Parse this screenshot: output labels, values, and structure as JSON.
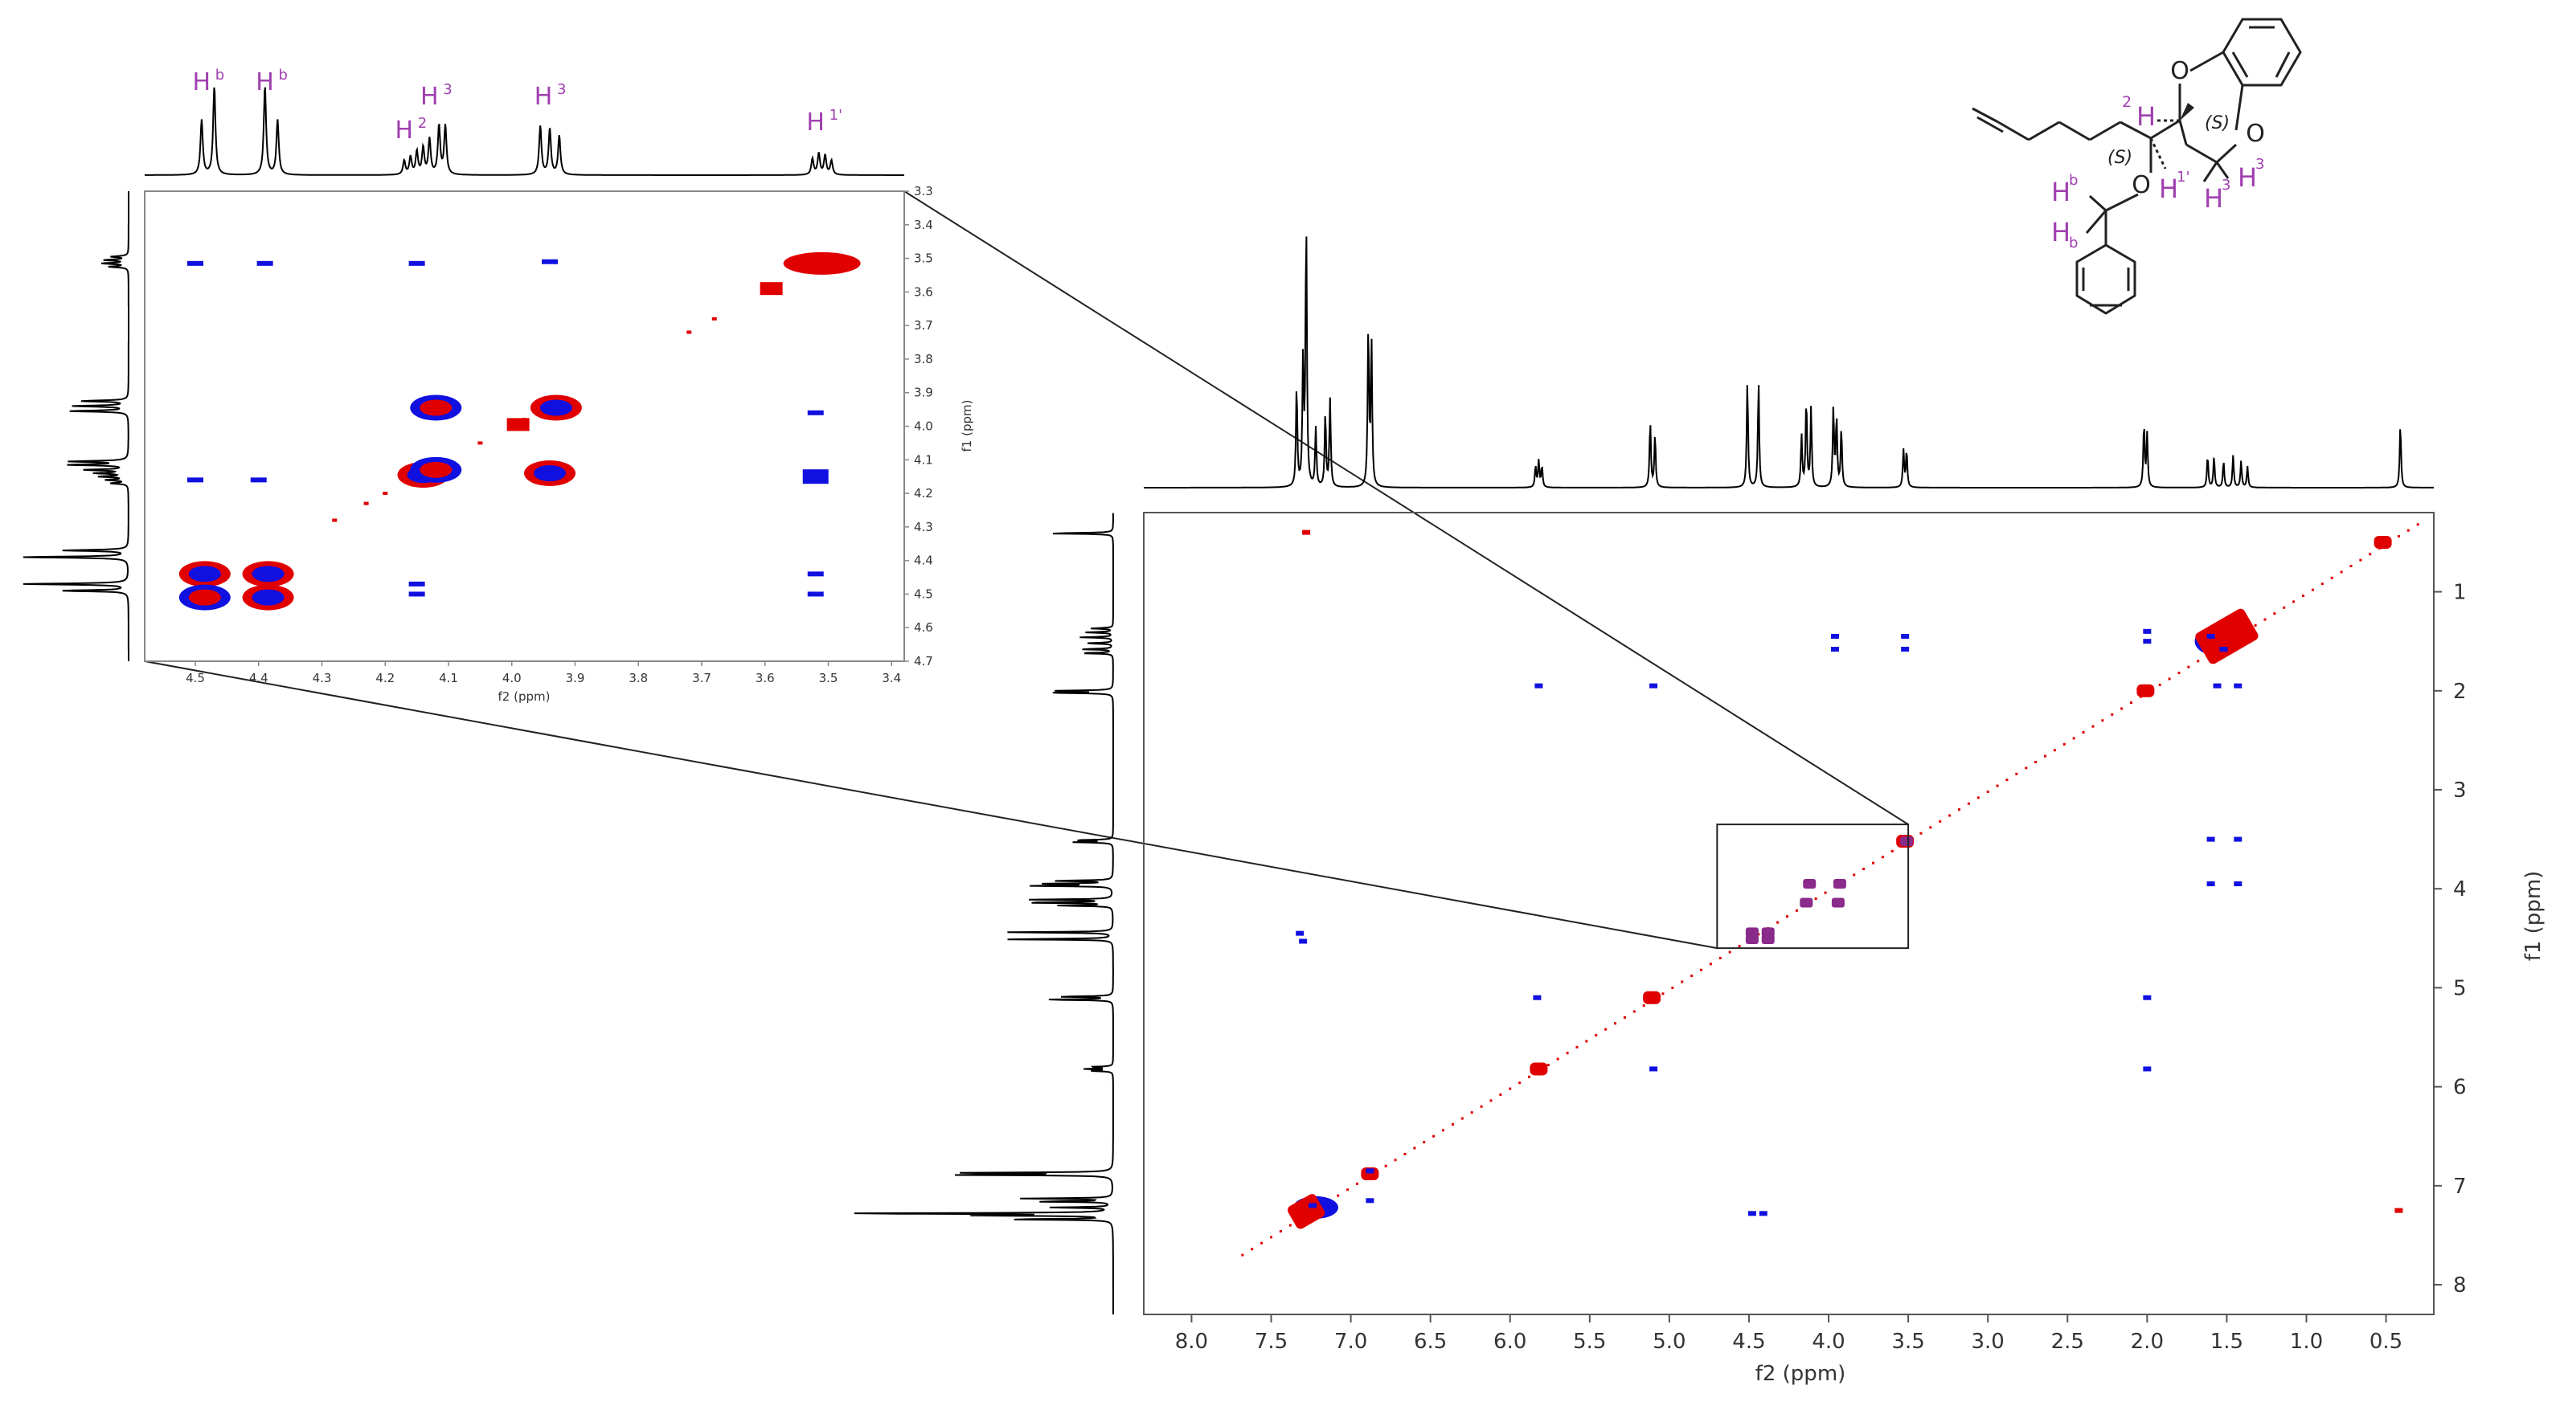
{
  "chart_data": [
    {
      "type": "heatmap",
      "name": "main-2d-spectrum",
      "xlabel": "f2 (ppm)",
      "ylabel": "f1 (ppm)",
      "xlim": [
        8.3,
        0.2
      ],
      "ylim": [
        0.2,
        8.3
      ],
      "x_ticks": [
        8.0,
        7.5,
        7.0,
        6.5,
        6.0,
        5.5,
        5.0,
        4.5,
        4.0,
        3.5,
        3.0,
        2.5,
        2.0,
        1.5,
        1.0,
        0.5
      ],
      "y_ticks": [
        1,
        2,
        3,
        4,
        5,
        6,
        7,
        8
      ],
      "colors": {
        "positive": "#e00000",
        "negative": "#1010e0",
        "frame": "#555555",
        "trace": "#000000",
        "zoom_box": "#222222"
      },
      "proton_peaks": [
        {
          "ppm": 7.34,
          "h": 0.38
        },
        {
          "ppm": 7.3,
          "h": 0.48
        },
        {
          "ppm": 7.28,
          "h": 1.0
        },
        {
          "ppm": 7.22,
          "h": 0.22
        },
        {
          "ppm": 7.16,
          "h": 0.28
        },
        {
          "ppm": 7.13,
          "h": 0.33
        },
        {
          "ppm": 6.89,
          "h": 0.6
        },
        {
          "ppm": 6.87,
          "h": 0.55
        },
        {
          "ppm": 5.84,
          "h": 0.08
        },
        {
          "ppm": 5.82,
          "h": 0.1
        },
        {
          "ppm": 5.8,
          "h": 0.08
        },
        {
          "ppm": 5.12,
          "h": 0.25
        },
        {
          "ppm": 5.09,
          "h": 0.2
        },
        {
          "ppm": 4.51,
          "h": 0.4
        },
        {
          "ppm": 4.44,
          "h": 0.4
        },
        {
          "ppm": 4.17,
          "h": 0.2
        },
        {
          "ppm": 4.14,
          "h": 0.33
        },
        {
          "ppm": 4.11,
          "h": 0.3
        },
        {
          "ppm": 3.97,
          "h": 0.3
        },
        {
          "ppm": 3.95,
          "h": 0.26
        },
        {
          "ppm": 3.92,
          "h": 0.22
        },
        {
          "ppm": 3.53,
          "h": 0.14
        },
        {
          "ppm": 3.51,
          "h": 0.14
        },
        {
          "ppm": 2.02,
          "h": 0.24
        },
        {
          "ppm": 2.0,
          "h": 0.2
        },
        {
          "ppm": 1.62,
          "h": 0.12
        },
        {
          "ppm": 1.58,
          "h": 0.12
        },
        {
          "ppm": 1.52,
          "h": 0.1
        },
        {
          "ppm": 1.46,
          "h": 0.12
        },
        {
          "ppm": 1.41,
          "h": 0.1
        },
        {
          "ppm": 1.37,
          "h": 0.08
        },
        {
          "ppm": 0.41,
          "h": 0.24
        }
      ],
      "diagonal_peaks": [
        {
          "x": 7.28,
          "y": 7.26
        },
        {
          "x": 6.88,
          "y": 6.88
        },
        {
          "x": 5.82,
          "y": 5.82
        },
        {
          "x": 5.11,
          "y": 5.1
        },
        {
          "x": 3.52,
          "y": 3.52
        },
        {
          "x": 2.01,
          "y": 2.0
        },
        {
          "x": 1.5,
          "y": 1.45
        },
        {
          "x": 0.52,
          "y": 0.5
        }
      ],
      "cross_peaks": [
        {
          "x": 7.28,
          "y": 0.4,
          "s": "pos"
        },
        {
          "x": 7.32,
          "y": 4.45,
          "s": "neg"
        },
        {
          "x": 7.3,
          "y": 4.53,
          "s": "neg"
        },
        {
          "x": 7.24,
          "y": 7.2,
          "s": "neg"
        },
        {
          "x": 6.88,
          "y": 7.15,
          "s": "neg"
        },
        {
          "x": 6.88,
          "y": 6.85,
          "s": "neg"
        },
        {
          "x": 5.82,
          "y": 1.95,
          "s": "neg"
        },
        {
          "x": 5.83,
          "y": 5.1,
          "s": "neg"
        },
        {
          "x": 5.1,
          "y": 5.82,
          "s": "neg"
        },
        {
          "x": 5.1,
          "y": 1.95,
          "s": "neg"
        },
        {
          "x": 4.48,
          "y": 7.28,
          "s": "neg"
        },
        {
          "x": 4.41,
          "y": 7.28,
          "s": "neg"
        },
        {
          "x": 3.96,
          "y": 1.45,
          "s": "neg"
        },
        {
          "x": 3.96,
          "y": 1.58,
          "s": "neg"
        },
        {
          "x": 3.52,
          "y": 1.45,
          "s": "neg"
        },
        {
          "x": 3.52,
          "y": 1.58,
          "s": "neg"
        },
        {
          "x": 2.0,
          "y": 1.4,
          "s": "neg"
        },
        {
          "x": 2.0,
          "y": 1.5,
          "s": "neg"
        },
        {
          "x": 2.0,
          "y": 5.1,
          "s": "neg"
        },
        {
          "x": 2.0,
          "y": 5.82,
          "s": "neg"
        },
        {
          "x": 1.6,
          "y": 1.45,
          "s": "neg"
        },
        {
          "x": 1.52,
          "y": 1.58,
          "s": "neg"
        },
        {
          "x": 1.56,
          "y": 1.95,
          "s": "neg"
        },
        {
          "x": 1.43,
          "y": 1.95,
          "s": "neg"
        },
        {
          "x": 1.6,
          "y": 3.5,
          "s": "neg"
        },
        {
          "x": 1.43,
          "y": 3.5,
          "s": "neg"
        },
        {
          "x": 1.6,
          "y": 3.95,
          "s": "neg"
        },
        {
          "x": 1.43,
          "y": 3.95,
          "s": "neg"
        },
        {
          "x": 0.42,
          "y": 7.25,
          "s": "pos"
        }
      ],
      "zoom_region": {
        "x": [
          4.7,
          3.5
        ],
        "y": [
          3.35,
          4.6
        ]
      }
    },
    {
      "type": "heatmap",
      "name": "inset-zoom-spectrum",
      "xlabel": "f2 (ppm)",
      "ylabel": "f1 (ppm)",
      "xlim": [
        4.58,
        3.38
      ],
      "ylim": [
        3.3,
        4.7
      ],
      "x_ticks": [
        4.5,
        4.4,
        4.3,
        4.2,
        4.1,
        4.0,
        3.9,
        3.8,
        3.7,
        3.6,
        3.5,
        3.4
      ],
      "y_ticks": [
        3.3,
        3.4,
        3.5,
        3.6,
        3.7,
        3.8,
        3.9,
        4.0,
        4.1,
        4.2,
        4.3,
        4.4,
        4.5,
        4.6,
        4.7
      ],
      "proton_peaks": [
        {
          "ppm": 4.49,
          "h": 0.62
        },
        {
          "ppm": 4.47,
          "h": 1.0
        },
        {
          "ppm": 4.39,
          "h": 1.0
        },
        {
          "ppm": 4.37,
          "h": 0.62
        },
        {
          "ppm": 4.17,
          "h": 0.16
        },
        {
          "ppm": 4.16,
          "h": 0.2
        },
        {
          "ppm": 4.15,
          "h": 0.26
        },
        {
          "ppm": 4.14,
          "h": 0.3
        },
        {
          "ppm": 4.13,
          "h": 0.4
        },
        {
          "ppm": 4.115,
          "h": 0.55
        },
        {
          "ppm": 4.105,
          "h": 0.55
        },
        {
          "ppm": 3.955,
          "h": 0.55
        },
        {
          "ppm": 3.94,
          "h": 0.52
        },
        {
          "ppm": 3.925,
          "h": 0.44
        },
        {
          "ppm": 3.525,
          "h": 0.18
        },
        {
          "ppm": 3.515,
          "h": 0.24
        },
        {
          "ppm": 3.505,
          "h": 0.22
        },
        {
          "ppm": 3.495,
          "h": 0.16
        }
      ],
      "peaks": [
        {
          "x": 4.485,
          "y": 4.44,
          "s": "mix"
        },
        {
          "x": 4.385,
          "y": 4.44,
          "s": "mix"
        },
        {
          "x": 4.485,
          "y": 4.51,
          "s": "mixb"
        },
        {
          "x": 4.385,
          "y": 4.51,
          "s": "mixr"
        },
        {
          "x": 4.12,
          "y": 3.945,
          "s": "mixb"
        },
        {
          "x": 3.93,
          "y": 3.945,
          "s": "mixr"
        },
        {
          "x": 4.14,
          "y": 4.145,
          "s": "mixr"
        },
        {
          "x": 4.12,
          "y": 4.13,
          "s": "mixb"
        },
        {
          "x": 3.94,
          "y": 4.14,
          "s": "mixr"
        },
        {
          "x": 3.51,
          "y": 3.515,
          "s": "pos_big"
        },
        {
          "x": 3.59,
          "y": 3.59,
          "s": "pos_small"
        },
        {
          "x": 3.99,
          "y": 3.995,
          "s": "pos_small"
        }
      ],
      "weak_peaks": [
        {
          "x": 4.5,
          "y": 3.515,
          "s": "neg"
        },
        {
          "x": 4.39,
          "y": 3.515,
          "s": "neg"
        },
        {
          "x": 4.15,
          "y": 3.515,
          "s": "neg"
        },
        {
          "x": 4.5,
          "y": 4.16,
          "s": "neg"
        },
        {
          "x": 4.4,
          "y": 4.16,
          "s": "neg"
        },
        {
          "x": 4.15,
          "y": 4.47,
          "s": "neg"
        },
        {
          "x": 4.15,
          "y": 4.5,
          "s": "neg"
        },
        {
          "x": 3.52,
          "y": 4.15,
          "s": "neg_big"
        },
        {
          "x": 3.52,
          "y": 4.44,
          "s": "neg"
        },
        {
          "x": 3.52,
          "y": 4.5,
          "s": "neg"
        },
        {
          "x": 3.94,
          "y": 3.51,
          "s": "neg"
        },
        {
          "x": 3.52,
          "y": 3.96,
          "s": "neg"
        }
      ],
      "diagonal_dots": [
        4.28,
        4.23,
        4.2,
        4.05,
        3.98,
        3.72,
        3.68
      ]
    }
  ],
  "inset_annotations": [
    {
      "base": "H",
      "sup": "b",
      "ppm": 4.48
    },
    {
      "base": "H",
      "sup": "b",
      "ppm": 4.38
    },
    {
      "base": "H",
      "sup": "2",
      "ppm": 4.16
    },
    {
      "base": "H",
      "sup": "3",
      "ppm": 4.12
    },
    {
      "base": "H",
      "sup": "3",
      "ppm": 3.94
    },
    {
      "base": "H",
      "sup": "1'",
      "ppm": 3.51
    }
  ],
  "molecule": {
    "oxygen_label": "O",
    "hydrogen_label": "H",
    "stereo_label": "(S)",
    "h2_label": "2",
    "h1p_sup": "1'",
    "h3_sup": "3",
    "hb_sup": "b",
    "hb_sub": "b",
    "label_color": "#a040b0",
    "bond_color": "#222222"
  }
}
